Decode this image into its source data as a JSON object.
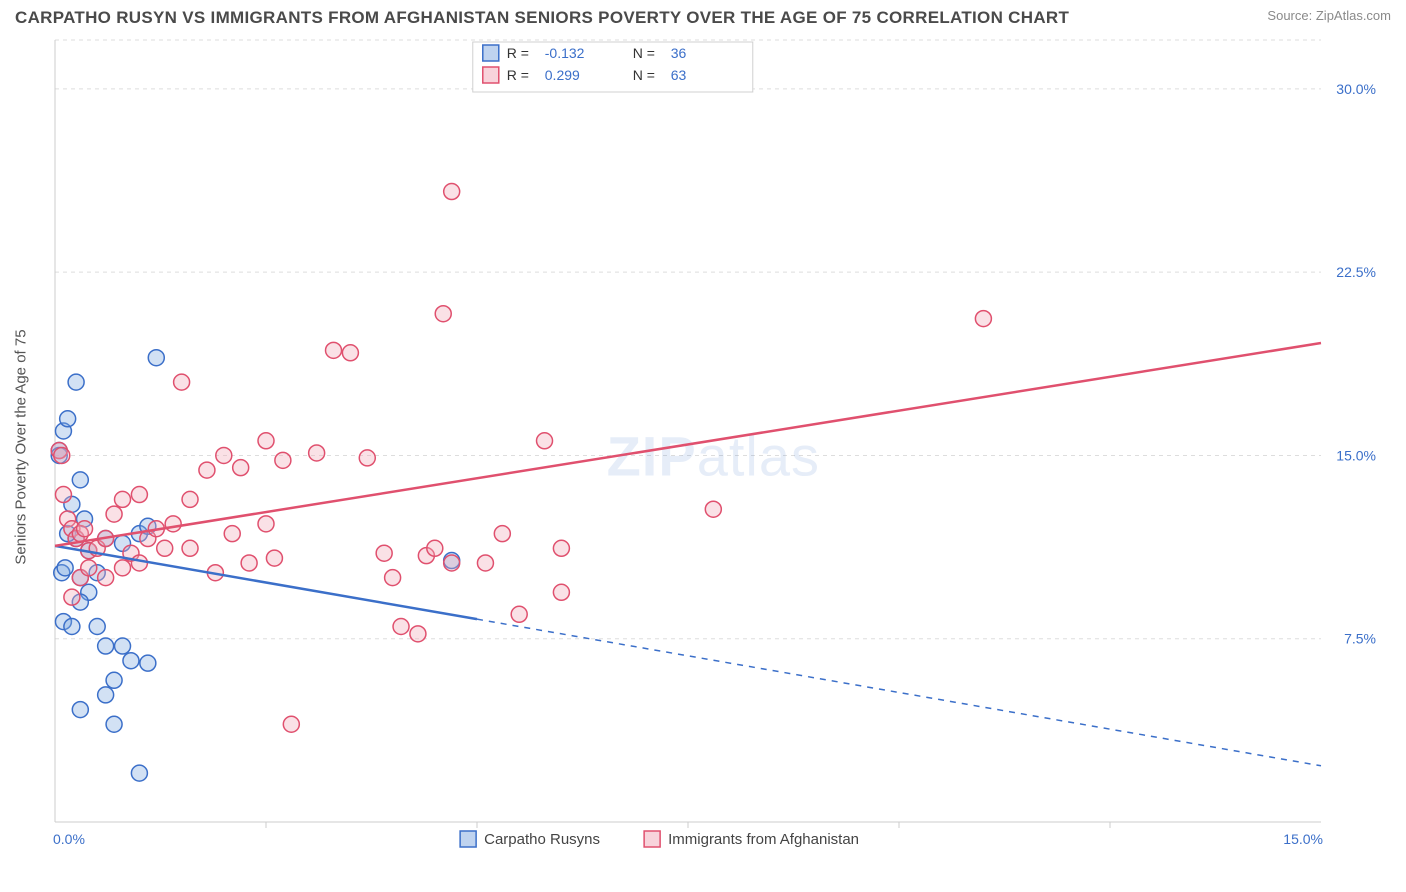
{
  "title": "CARPATHO RUSYN VS IMMIGRANTS FROM AFGHANISTAN SENIORS POVERTY OVER THE AGE OF 75 CORRELATION CHART",
  "source_label": "Source:",
  "source_name": "ZipAtlas.com",
  "ylabel": "Seniors Poverty Over the Age of 75",
  "watermark_a": "ZIP",
  "watermark_b": "atlas",
  "chart": {
    "type": "scatter",
    "background_color": "#ffffff",
    "grid_color": "#dddddd",
    "axis_color": "#cccccc",
    "tick_color": "#3b6fc9",
    "xlim": [
      0,
      15
    ],
    "ylim": [
      0,
      32
    ],
    "xticks": [
      {
        "v": 0,
        "label": "0.0%"
      },
      {
        "v": 15,
        "label": "15.0%"
      }
    ],
    "xminor": [
      2.5,
      5,
      7.5,
      10,
      12.5
    ],
    "yticks": [
      {
        "v": 7.5,
        "label": "7.5%"
      },
      {
        "v": 15,
        "label": "15.0%"
      },
      {
        "v": 22.5,
        "label": "22.5%"
      },
      {
        "v": 30,
        "label": "30.0%"
      }
    ],
    "marker_radius": 8,
    "series": [
      {
        "key": "carpatho",
        "label": "Carpatho Rusyns",
        "fill": "#7fa8e0",
        "stroke": "#3b6fc9",
        "R": "-0.132",
        "N": "36",
        "trend": {
          "x0": 0,
          "y0": 11.3,
          "x1": 5,
          "y1": 8.3,
          "x1_ext": 15,
          "y1_ext": 2.3
        },
        "points": [
          [
            0.05,
            15.2
          ],
          [
            0.05,
            15.0
          ],
          [
            0.1,
            16.0
          ],
          [
            0.15,
            16.5
          ],
          [
            0.25,
            18.0
          ],
          [
            0.3,
            14.0
          ],
          [
            0.08,
            10.2
          ],
          [
            0.12,
            10.4
          ],
          [
            0.2,
            13.0
          ],
          [
            0.25,
            11.6
          ],
          [
            0.35,
            12.4
          ],
          [
            0.4,
            11.1
          ],
          [
            0.15,
            11.8
          ],
          [
            0.3,
            10.0
          ],
          [
            0.4,
            9.4
          ],
          [
            0.5,
            10.2
          ],
          [
            0.6,
            11.6
          ],
          [
            0.8,
            11.4
          ],
          [
            1.0,
            11.8
          ],
          [
            1.2,
            19.0
          ],
          [
            1.1,
            12.1
          ],
          [
            0.1,
            8.2
          ],
          [
            0.2,
            8.0
          ],
          [
            0.3,
            9.0
          ],
          [
            0.5,
            8.0
          ],
          [
            0.6,
            7.2
          ],
          [
            0.8,
            7.2
          ],
          [
            0.9,
            6.6
          ],
          [
            1.1,
            6.5
          ],
          [
            0.6,
            5.2
          ],
          [
            0.7,
            5.8
          ],
          [
            0.3,
            4.6
          ],
          [
            0.7,
            4.0
          ],
          [
            1.0,
            2.0
          ],
          [
            4.7,
            10.7
          ]
        ]
      },
      {
        "key": "afghan",
        "label": "Immigrants from Afghanistan",
        "fill": "#f2a8b8",
        "stroke": "#e0506e",
        "R": "0.299",
        "N": "63",
        "trend": {
          "x0": 0,
          "y0": 11.3,
          "x1": 15,
          "y1": 19.6
        },
        "points": [
          [
            0.05,
            15.2
          ],
          [
            0.08,
            15.0
          ],
          [
            0.1,
            13.4
          ],
          [
            0.15,
            12.4
          ],
          [
            0.2,
            12.0
          ],
          [
            0.25,
            11.6
          ],
          [
            0.3,
            11.8
          ],
          [
            0.35,
            12.0
          ],
          [
            0.4,
            11.1
          ],
          [
            0.5,
            11.2
          ],
          [
            0.6,
            11.6
          ],
          [
            0.7,
            12.6
          ],
          [
            0.8,
            13.2
          ],
          [
            0.9,
            11.0
          ],
          [
            1.0,
            10.6
          ],
          [
            1.1,
            11.6
          ],
          [
            1.2,
            12.0
          ],
          [
            1.3,
            11.2
          ],
          [
            1.4,
            12.2
          ],
          [
            1.6,
            13.2
          ],
          [
            1.8,
            14.4
          ],
          [
            2.0,
            15.0
          ],
          [
            2.2,
            14.5
          ],
          [
            2.3,
            10.6
          ],
          [
            2.5,
            12.2
          ],
          [
            2.5,
            15.6
          ],
          [
            2.6,
            10.8
          ],
          [
            2.7,
            14.8
          ],
          [
            1.5,
            18.0
          ],
          [
            3.1,
            15.1
          ],
          [
            3.3,
            19.3
          ],
          [
            3.5,
            19.2
          ],
          [
            3.7,
            14.9
          ],
          [
            3.9,
            11.0
          ],
          [
            4.0,
            10.0
          ],
          [
            4.1,
            8.0
          ],
          [
            4.3,
            7.7
          ],
          [
            4.4,
            10.9
          ],
          [
            4.5,
            11.2
          ],
          [
            4.6,
            20.8
          ],
          [
            4.7,
            10.6
          ],
          [
            4.7,
            25.8
          ],
          [
            5.1,
            10.6
          ],
          [
            5.3,
            11.8
          ],
          [
            5.5,
            8.5
          ],
          [
            5.8,
            15.6
          ],
          [
            6.0,
            9.4
          ],
          [
            6.0,
            11.2
          ],
          [
            2.8,
            4.0
          ],
          [
            0.2,
            9.2
          ],
          [
            0.3,
            10.0
          ],
          [
            0.4,
            10.4
          ],
          [
            0.6,
            10.0
          ],
          [
            0.8,
            10.4
          ],
          [
            1.0,
            13.4
          ],
          [
            1.6,
            11.2
          ],
          [
            1.9,
            10.2
          ],
          [
            2.1,
            11.8
          ],
          [
            7.8,
            12.8
          ],
          [
            11.0,
            20.6
          ]
        ]
      }
    ],
    "stats_legend": {
      "R_prefix": "R =",
      "N_prefix": "N ="
    }
  }
}
